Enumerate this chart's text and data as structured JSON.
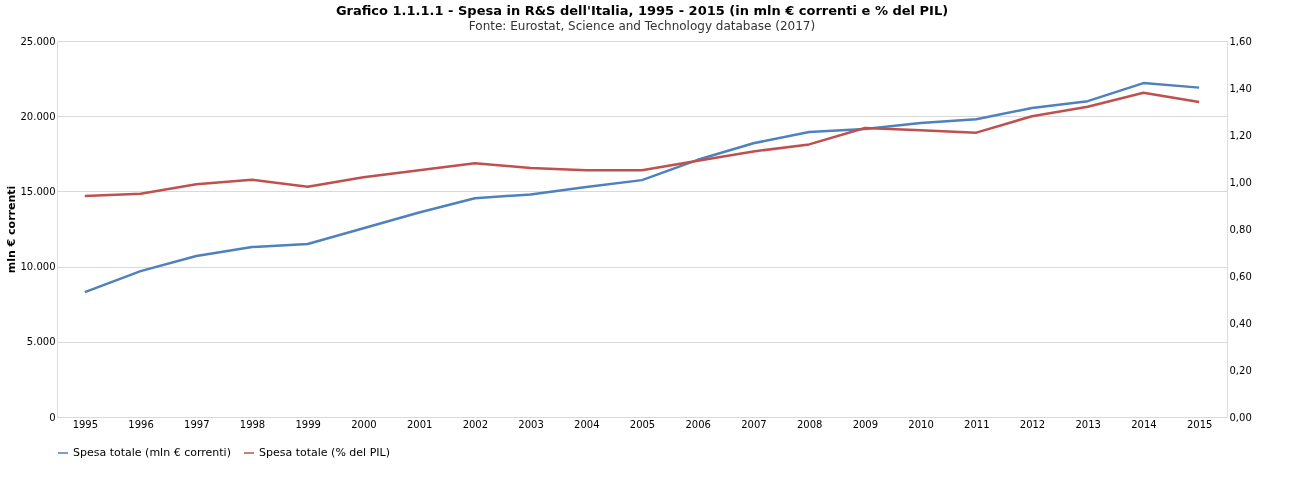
{
  "chart_data": {
    "type": "line",
    "title": "Grafico 1.1.1.1 - Spesa in R&S dell'Italia, 1995 - 2015 (in mln € correnti e % del PIL)",
    "subtitle": "Fonte: Eurostat, Science and Technology database (2017)",
    "ylabel": "mln € correnti",
    "categories": [
      "1995",
      "1996",
      "1997",
      "1998",
      "1999",
      "2000",
      "2001",
      "2002",
      "2003",
      "2004",
      "2005",
      "2006",
      "2007",
      "2008",
      "2009",
      "2010",
      "2011",
      "2012",
      "2013",
      "2014",
      "2015"
    ],
    "series": [
      {
        "name": "Spesa totale (mln € correnti)",
        "color": "#4f81bd",
        "values": [
          8300,
          9700,
          10700,
          11300,
          11500,
          12550,
          13600,
          14550,
          14800,
          15300,
          15750,
          17100,
          18200,
          18950,
          19150,
          19550,
          19800,
          20550,
          21000,
          22200,
          21900
        ]
      },
      {
        "name": "Spesa totale (% del PIL)",
        "color": "#c0504d",
        "axis": "y2",
        "values": [
          0.94,
          0.95,
          0.99,
          1.01,
          0.98,
          1.02,
          1.05,
          1.08,
          1.06,
          1.05,
          1.05,
          1.09,
          1.13,
          1.16,
          1.23,
          1.22,
          1.21,
          1.28,
          1.32,
          1.38,
          1.34
        ]
      }
    ],
    "ylim": [
      0,
      25000
    ],
    "yticks": [
      0,
      {
        "value": 5000,
        "label": "5.000"
      },
      {
        "value": 10000,
        "label": "10.000"
      },
      {
        "value": 15000,
        "label": "15.000"
      },
      {
        "value": 20000,
        "label": "20.000"
      },
      {
        "value": 25000,
        "label": "25.000"
      }
    ],
    "y2lim": [
      0,
      1.6
    ],
    "y2ticks": [
      {
        "value": 0,
        "label": "0,00"
      },
      {
        "value": 0.2,
        "label": "0,20"
      },
      {
        "value": 0.4,
        "label": "0,40"
      },
      {
        "value": 0.6,
        "label": "0,60"
      },
      {
        "value": 0.8,
        "label": "0,80"
      },
      {
        "value": 1.0,
        "label": "1,00"
      },
      {
        "value": 1.2,
        "label": "1,20"
      },
      {
        "value": 1.4,
        "label": "1,40"
      },
      {
        "value": 1.6,
        "label": "1,60"
      }
    ],
    "grid": "y",
    "legend": "bottom",
    "line_style": "solid",
    "marker": "none"
  }
}
